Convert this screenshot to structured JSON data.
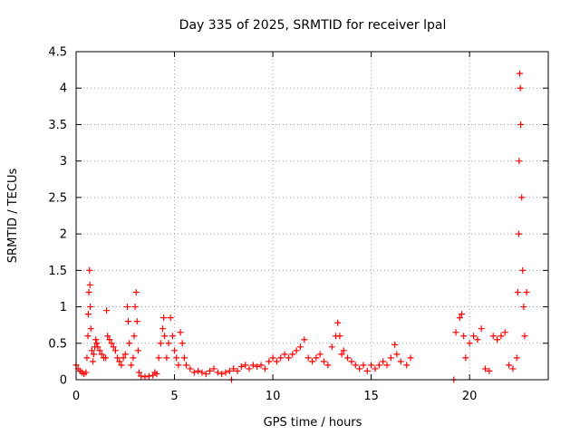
{
  "chart_data": {
    "type": "scatter",
    "title": "Day 335 of 2025, SRMTID for receiver lpal",
    "xlabel": "GPS time / hours",
    "ylabel": "SRMTID / TECUs",
    "xlim": [
      0,
      24
    ],
    "ylim": [
      0,
      4.5
    ],
    "x_ticks": [
      0,
      5,
      10,
      15,
      20
    ],
    "x_tick_labels": [
      "0",
      "5",
      "10",
      "15",
      "20"
    ],
    "y_ticks": [
      0,
      0.5,
      1,
      1.5,
      2,
      2.5,
      3,
      3.5,
      4,
      4.5
    ],
    "y_tick_labels": [
      "0",
      "0.5",
      "1",
      "1.5",
      "2",
      "2.5",
      "3",
      "3.5",
      "4",
      "4.5"
    ],
    "grid": true,
    "marker": "+",
    "series": [
      {
        "name": "SRMTID",
        "color": "#ff0000",
        "points": [
          [
            0.0,
            0.2
          ],
          [
            0.1,
            0.15
          ],
          [
            0.2,
            0.12
          ],
          [
            0.3,
            0.1
          ],
          [
            0.4,
            0.08
          ],
          [
            0.5,
            0.1
          ],
          [
            0.55,
            0.3
          ],
          [
            0.6,
            0.6
          ],
          [
            0.62,
            0.9
          ],
          [
            0.65,
            1.2
          ],
          [
            0.68,
            1.5
          ],
          [
            0.7,
            1.3
          ],
          [
            0.72,
            1.0
          ],
          [
            0.75,
            0.7
          ],
          [
            0.8,
            0.4
          ],
          [
            0.85,
            0.25
          ],
          [
            0.9,
            0.35
          ],
          [
            0.95,
            0.45
          ],
          [
            1.0,
            0.55
          ],
          [
            1.05,
            0.5
          ],
          [
            1.1,
            0.45
          ],
          [
            1.2,
            0.4
          ],
          [
            1.3,
            0.35
          ],
          [
            1.4,
            0.3
          ],
          [
            1.5,
            0.3
          ],
          [
            1.55,
            0.95
          ],
          [
            1.6,
            0.6
          ],
          [
            1.7,
            0.55
          ],
          [
            1.8,
            0.5
          ],
          [
            1.9,
            0.45
          ],
          [
            2.0,
            0.4
          ],
          [
            2.1,
            0.3
          ],
          [
            2.2,
            0.25
          ],
          [
            2.3,
            0.2
          ],
          [
            2.4,
            0.3
          ],
          [
            2.5,
            0.35
          ],
          [
            2.6,
            1.0
          ],
          [
            2.65,
            0.8
          ],
          [
            2.7,
            0.5
          ],
          [
            2.8,
            0.2
          ],
          [
            2.9,
            0.3
          ],
          [
            2.95,
            0.6
          ],
          [
            3.0,
            1.0
          ],
          [
            3.05,
            1.2
          ],
          [
            3.1,
            0.8
          ],
          [
            3.15,
            0.4
          ],
          [
            3.2,
            0.1
          ],
          [
            3.3,
            0.05
          ],
          [
            3.5,
            0.04
          ],
          [
            3.7,
            0.05
          ],
          [
            3.9,
            0.06
          ],
          [
            4.0,
            0.1
          ],
          [
            4.1,
            0.08
          ],
          [
            4.2,
            0.3
          ],
          [
            4.3,
            0.5
          ],
          [
            4.4,
            0.7
          ],
          [
            4.45,
            0.85
          ],
          [
            4.5,
            0.6
          ],
          [
            4.6,
            0.3
          ],
          [
            4.7,
            0.5
          ],
          [
            4.8,
            0.85
          ],
          [
            4.9,
            0.6
          ],
          [
            5.0,
            0.4
          ],
          [
            5.1,
            0.3
          ],
          [
            5.2,
            0.2
          ],
          [
            5.3,
            0.65
          ],
          [
            5.4,
            0.5
          ],
          [
            5.5,
            0.3
          ],
          [
            5.6,
            0.2
          ],
          [
            5.8,
            0.15
          ],
          [
            6.0,
            0.1
          ],
          [
            6.2,
            0.12
          ],
          [
            6.4,
            0.1
          ],
          [
            6.6,
            0.08
          ],
          [
            6.8,
            0.12
          ],
          [
            7.0,
            0.15
          ],
          [
            7.2,
            0.1
          ],
          [
            7.4,
            0.08
          ],
          [
            7.6,
            0.1
          ],
          [
            7.8,
            0.12
          ],
          [
            7.9,
            0.0
          ],
          [
            8.0,
            0.15
          ],
          [
            8.2,
            0.12
          ],
          [
            8.4,
            0.18
          ],
          [
            8.6,
            0.2
          ],
          [
            8.8,
            0.15
          ],
          [
            9.0,
            0.2
          ],
          [
            9.2,
            0.18
          ],
          [
            9.4,
            0.2
          ],
          [
            9.6,
            0.15
          ],
          [
            9.8,
            0.25
          ],
          [
            10.0,
            0.3
          ],
          [
            10.2,
            0.25
          ],
          [
            10.4,
            0.3
          ],
          [
            10.6,
            0.35
          ],
          [
            10.8,
            0.3
          ],
          [
            11.0,
            0.35
          ],
          [
            11.2,
            0.4
          ],
          [
            11.4,
            0.45
          ],
          [
            11.6,
            0.55
          ],
          [
            11.8,
            0.3
          ],
          [
            12.0,
            0.25
          ],
          [
            12.2,
            0.3
          ],
          [
            12.4,
            0.35
          ],
          [
            12.6,
            0.25
          ],
          [
            12.8,
            0.2
          ],
          [
            13.0,
            0.45
          ],
          [
            13.2,
            0.6
          ],
          [
            13.3,
            0.78
          ],
          [
            13.4,
            0.6
          ],
          [
            13.5,
            0.35
          ],
          [
            13.6,
            0.4
          ],
          [
            13.8,
            0.3
          ],
          [
            14.0,
            0.25
          ],
          [
            14.2,
            0.2
          ],
          [
            14.4,
            0.15
          ],
          [
            14.6,
            0.2
          ],
          [
            14.8,
            0.12
          ],
          [
            15.0,
            0.2
          ],
          [
            15.2,
            0.15
          ],
          [
            15.4,
            0.2
          ],
          [
            15.6,
            0.25
          ],
          [
            15.8,
            0.2
          ],
          [
            16.0,
            0.3
          ],
          [
            16.2,
            0.48
          ],
          [
            16.3,
            0.35
          ],
          [
            16.5,
            0.25
          ],
          [
            16.8,
            0.2
          ],
          [
            17.0,
            0.3
          ],
          [
            19.2,
            0.0
          ],
          [
            19.3,
            0.65
          ],
          [
            19.5,
            0.85
          ],
          [
            19.6,
            0.9
          ],
          [
            19.7,
            0.6
          ],
          [
            19.8,
            0.3
          ],
          [
            20.0,
            0.5
          ],
          [
            20.2,
            0.6
          ],
          [
            20.4,
            0.55
          ],
          [
            20.6,
            0.7
          ],
          [
            20.8,
            0.15
          ],
          [
            21.0,
            0.12
          ],
          [
            21.2,
            0.6
          ],
          [
            21.4,
            0.55
          ],
          [
            21.6,
            0.6
          ],
          [
            21.8,
            0.65
          ],
          [
            22.0,
            0.2
          ],
          [
            22.2,
            0.15
          ],
          [
            22.4,
            0.3
          ],
          [
            22.45,
            1.2
          ],
          [
            22.5,
            2.0
          ],
          [
            22.52,
            3.0
          ],
          [
            22.55,
            4.2
          ],
          [
            22.58,
            4.0
          ],
          [
            22.6,
            3.5
          ],
          [
            22.65,
            2.5
          ],
          [
            22.7,
            1.5
          ],
          [
            22.75,
            1.0
          ],
          [
            22.8,
            0.6
          ],
          [
            22.9,
            1.2
          ]
        ]
      }
    ]
  }
}
